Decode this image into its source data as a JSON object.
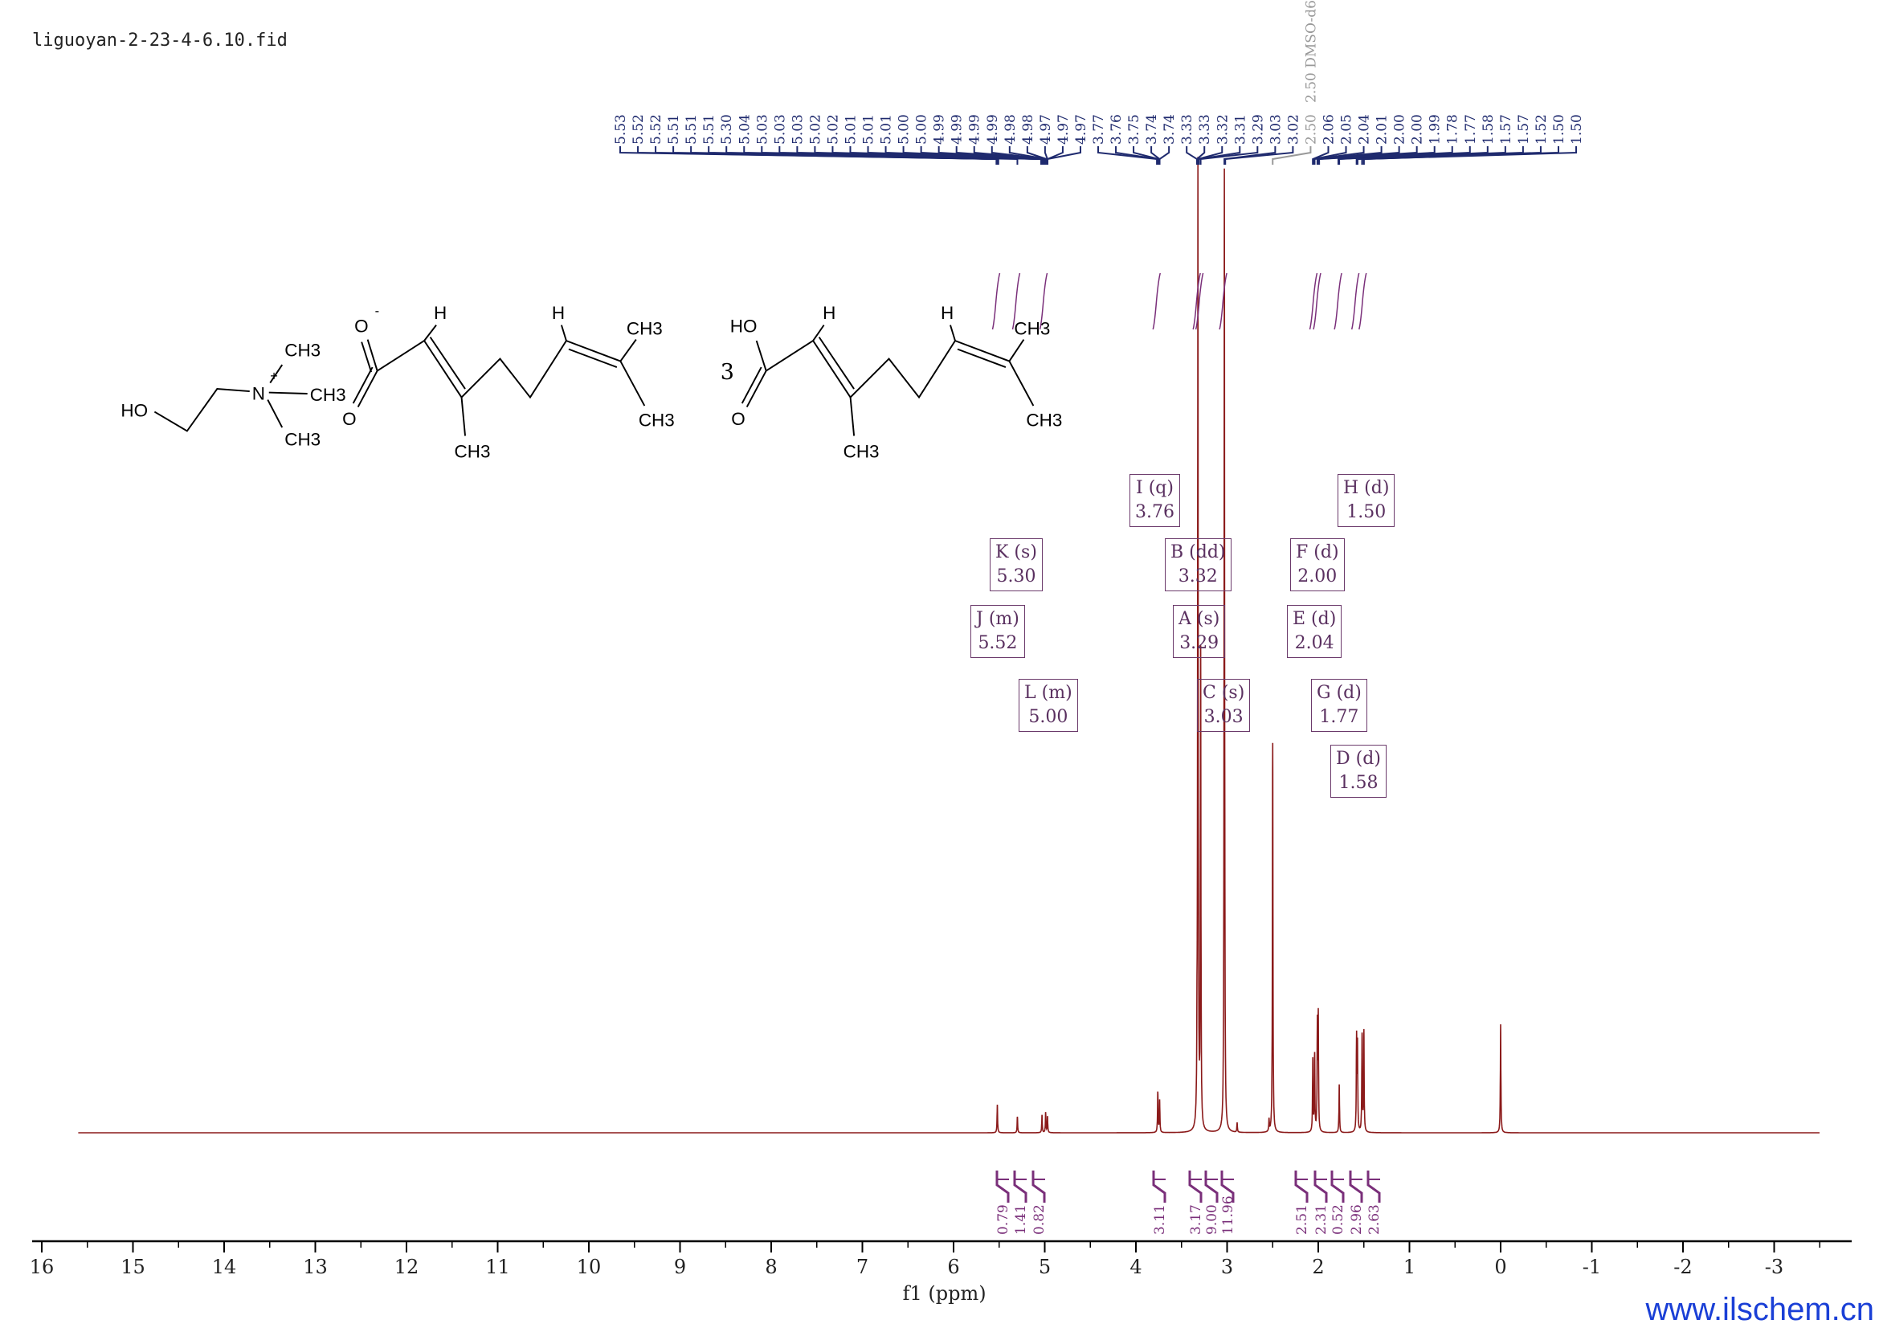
{
  "title": "liguoyan-2-23-4-6.10.fid",
  "watermark": "www.ilschem.cn",
  "colors": {
    "spectrum": "#8b1a1a",
    "peak_labels": "#1f2a6e",
    "solvent_label": "#999999",
    "multiplet_boxes": "#6b3a6b",
    "integrals": "#7a2f7a",
    "watermark": "#1a3fd6"
  },
  "structure": {
    "multiplier": "3",
    "atoms": [
      "HO",
      "CH3",
      "CH3",
      "CH3",
      "N",
      "+",
      "O",
      "-",
      "O",
      "H",
      "H",
      "CH3",
      "CH3",
      "CH3",
      "HO",
      "O",
      "H",
      "H",
      "CH3",
      "CH3",
      "CH3"
    ]
  },
  "chart_data": {
    "type": "line",
    "xlabel": "f1 (ppm)",
    "xlim": [
      16.3,
      -3.9
    ],
    "x_reversed": true,
    "xticks": [
      16,
      15,
      14,
      13,
      12,
      11,
      10,
      9,
      8,
      7,
      6,
      5,
      4,
      3,
      2,
      1,
      0,
      -1,
      -2,
      -3
    ],
    "grid": false,
    "solvent_label": "2.50 DMSO-d6",
    "peak_labels": [
      "5.53",
      "5.52",
      "5.52",
      "5.51",
      "5.51",
      "5.51",
      "5.30",
      "5.04",
      "5.03",
      "5.03",
      "5.03",
      "5.02",
      "5.02",
      "5.01",
      "5.01",
      "5.01",
      "5.00",
      "5.00",
      "4.99",
      "4.99",
      "4.99",
      "4.99",
      "4.98",
      "4.98",
      "4.97",
      "4.97",
      "4.97",
      "3.77",
      "3.76",
      "3.75",
      "3.74",
      "3.74",
      "3.33",
      "3.33",
      "3.32",
      "3.31",
      "3.29",
      "3.03",
      "3.02",
      "2.50",
      "2.06",
      "2.05",
      "2.04",
      "2.01",
      "2.00",
      "2.00",
      "1.99",
      "1.78",
      "1.77",
      "1.58",
      "1.57",
      "1.57",
      "1.52",
      "1.50",
      "1.50"
    ],
    "peaks": [
      {
        "ppm": 5.52,
        "intensity": 35
      },
      {
        "ppm": 5.3,
        "intensity": 20
      },
      {
        "ppm": 5.03,
        "intensity": 22
      },
      {
        "ppm": 4.99,
        "intensity": 25
      },
      {
        "ppm": 4.97,
        "intensity": 20
      },
      {
        "ppm": 3.76,
        "intensity": 50
      },
      {
        "ppm": 3.74,
        "intensity": 40
      },
      {
        "ppm": 3.33,
        "intensity": 60
      },
      {
        "ppm": 3.32,
        "intensity": 1200
      },
      {
        "ppm": 3.29,
        "intensity": 590
      },
      {
        "ppm": 3.03,
        "intensity": 1200
      },
      {
        "ppm": 2.89,
        "intensity": 12
      },
      {
        "ppm": 2.5,
        "intensity": 485
      },
      {
        "ppm": 2.54,
        "intensity": 15
      },
      {
        "ppm": 2.06,
        "intensity": 90
      },
      {
        "ppm": 2.04,
        "intensity": 95
      },
      {
        "ppm": 2.01,
        "intensity": 130
      },
      {
        "ppm": 2.0,
        "intensity": 140
      },
      {
        "ppm": 1.77,
        "intensity": 60
      },
      {
        "ppm": 1.58,
        "intensity": 115
      },
      {
        "ppm": 1.57,
        "intensity": 105
      },
      {
        "ppm": 1.52,
        "intensity": 120
      },
      {
        "ppm": 1.5,
        "intensity": 125
      },
      {
        "ppm": 0.0,
        "intensity": 135
      }
    ],
    "multiplets": [
      {
        "id": "I",
        "mult": "q",
        "shift": "3.76"
      },
      {
        "id": "H",
        "mult": "d",
        "shift": "1.50"
      },
      {
        "id": "K",
        "mult": "s",
        "shift": "5.30"
      },
      {
        "id": "B",
        "mult": "dd",
        "shift": "3.32"
      },
      {
        "id": "F",
        "mult": "d",
        "shift": "2.00"
      },
      {
        "id": "J",
        "mult": "m",
        "shift": "5.52"
      },
      {
        "id": "A",
        "mult": "s",
        "shift": "3.29"
      },
      {
        "id": "E",
        "mult": "d",
        "shift": "2.04"
      },
      {
        "id": "L",
        "mult": "m",
        "shift": "5.00"
      },
      {
        "id": "C",
        "mult": "s",
        "shift": "3.03"
      },
      {
        "id": "G",
        "mult": "d",
        "shift": "1.77"
      },
      {
        "id": "D",
        "mult": "d",
        "shift": "1.58"
      }
    ],
    "integrals": [
      {
        "ppm": 5.52,
        "value": "0.79"
      },
      {
        "ppm": 5.3,
        "value": "1.41"
      },
      {
        "ppm": 5.0,
        "value": "0.82"
      },
      {
        "ppm": 3.76,
        "value": "3.11"
      },
      {
        "ppm": 3.32,
        "value": "3.17"
      },
      {
        "ppm": 3.29,
        "value": "9.00"
      },
      {
        "ppm": 3.03,
        "value": "11.96"
      },
      {
        "ppm": 2.04,
        "value": "2.51"
      },
      {
        "ppm": 2.0,
        "value": "2.31"
      },
      {
        "ppm": 1.77,
        "value": "0.52"
      },
      {
        "ppm": 1.58,
        "value": "2.96"
      },
      {
        "ppm": 1.5,
        "value": "2.63"
      }
    ]
  }
}
